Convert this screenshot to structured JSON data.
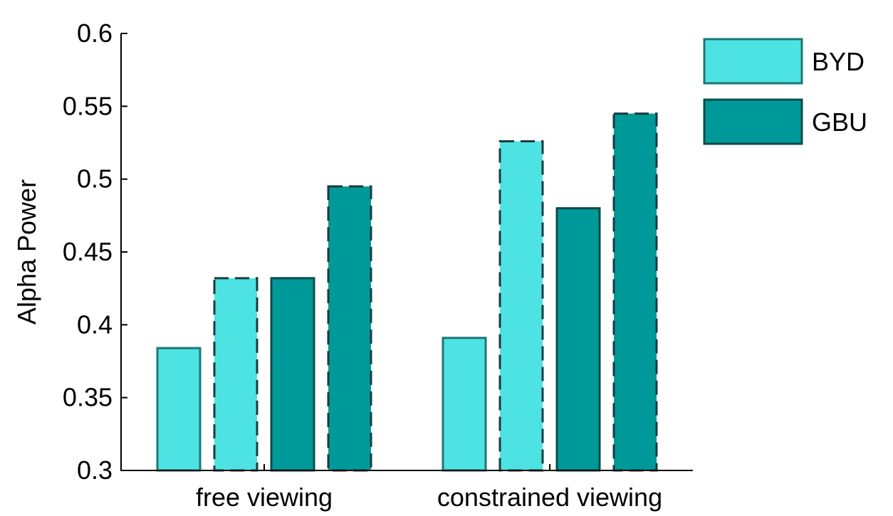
{
  "chart_data": {
    "type": "bar",
    "title": "",
    "xlabel": "",
    "ylabel": "Alpha Power",
    "ylim": [
      0.3,
      0.6
    ],
    "yticks": [
      0.3,
      0.35,
      0.4,
      0.45,
      0.5,
      0.55,
      0.6
    ],
    "ytick_labels": [
      "0.3",
      "0.35",
      "0.4",
      "0.45",
      "0.5",
      "0.55",
      "0.6"
    ],
    "grid": false,
    "legend_position": "top-right, outside plot area",
    "categories": [
      "free viewing",
      "constrained viewing"
    ],
    "bars": [
      [
        {
          "value": 0.384,
          "fill": "#4de3e3",
          "edge": "#1f7676",
          "dashed": false
        },
        {
          "value": 0.432,
          "fill": "#4de3e3",
          "edge": "#1b3b3b",
          "dashed": true
        },
        {
          "value": 0.432,
          "fill": "#009999",
          "edge": "#0b4c4c",
          "dashed": false
        },
        {
          "value": 0.495,
          "fill": "#009999",
          "edge": "#1b3b3b",
          "dashed": true
        }
      ],
      [
        {
          "value": 0.391,
          "fill": "#4de3e3",
          "edge": "#1f7676",
          "dashed": false
        },
        {
          "value": 0.526,
          "fill": "#4de3e3",
          "edge": "#1b3b3b",
          "dashed": true
        },
        {
          "value": 0.48,
          "fill": "#009999",
          "edge": "#0b4c4c",
          "dashed": false
        },
        {
          "value": 0.545,
          "fill": "#009999",
          "edge": "#1b3b3b",
          "dashed": true
        }
      ]
    ],
    "legend": [
      {
        "label": "BYD",
        "fill": "#4de3e3",
        "edge": "#1f7676"
      },
      {
        "label": "GBU",
        "fill": "#009999",
        "edge": "#0b4c4c"
      }
    ]
  }
}
